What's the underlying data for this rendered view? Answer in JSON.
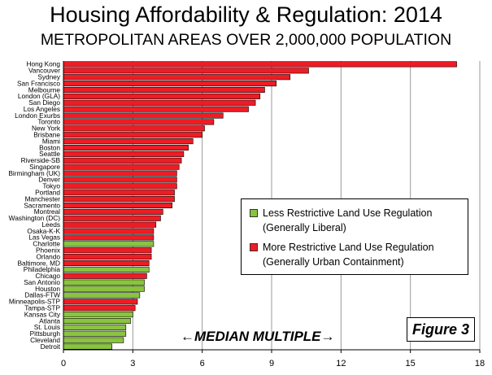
{
  "title": "Housing Affordability & Regulation: 2014",
  "subtitle": "METROPOLITAN AREAS OVER 2,000,000 POPULATION",
  "figure_label": "Figure 3",
  "axis_annotation": "←MEDIAN MULTIPLE→",
  "legend": [
    {
      "color": "#8ac43f",
      "line1": "Less Restrictive Land Use Regulation",
      "line2": "(Generally Liberal)"
    },
    {
      "color": "#ee1c24",
      "line1": "More Restrictive Land Use Regulation",
      "line2": "(Generally Urban Containment)"
    }
  ],
  "colors": {
    "less": "#8ac43f",
    "more": "#ee1c24",
    "grid": "#999999"
  },
  "chart_data": {
    "type": "bar",
    "orientation": "horizontal",
    "title": "Housing Affordability & Regulation: 2014",
    "subtitle": "METROPOLITAN AREAS OVER 2,000,000 POPULATION",
    "xlabel": "←MEDIAN MULTIPLE→",
    "xlim": [
      0,
      18
    ],
    "xticks": [
      0,
      3,
      6,
      9,
      12,
      15,
      18
    ],
    "grid": "vertical",
    "legend_position": "right-center",
    "categories": [
      "Hong Kong",
      "Vancouver",
      "Sydney",
      "San Francisco",
      "Melbourne",
      "London (GLA)",
      "San Diego",
      "Los Angeles",
      "London Exurbs",
      "Toronto",
      "New York",
      "Brisbane",
      "Miami",
      "Boston",
      "Seattle",
      "Riverside-SB",
      "Singapore",
      "Birmingham (UK)",
      "Denver",
      "Tokyo",
      "Portland",
      "Manchester",
      "Sacramento",
      "Montreal",
      "Washington (DC)",
      "Leeds",
      "Osaka-K-K",
      "Las Vegas",
      "Charlotte",
      "Phoenix",
      "Orlando",
      "Baltimore, MD",
      "Philadelphia",
      "Chicago",
      "San Antonio",
      "Houston",
      "Dallas-FTW",
      "Minneapolis-STP",
      "Tampa-STP",
      "Kansas City",
      "Atlanta",
      "St. Louis",
      "Pittsburgh",
      "Cleveland",
      "Detroit"
    ],
    "values": [
      17.0,
      10.6,
      9.8,
      9.2,
      8.7,
      8.5,
      8.3,
      8.0,
      6.9,
      6.5,
      6.1,
      6.0,
      5.6,
      5.4,
      5.2,
      5.1,
      5.0,
      4.9,
      4.9,
      4.9,
      4.8,
      4.8,
      4.7,
      4.3,
      4.2,
      4.0,
      3.9,
      3.9,
      3.9,
      3.8,
      3.8,
      3.7,
      3.7,
      3.6,
      3.5,
      3.5,
      3.3,
      3.2,
      3.1,
      3.0,
      2.9,
      2.7,
      2.7,
      2.6,
      2.1
    ],
    "regulation": [
      "more",
      "more",
      "more",
      "more",
      "more",
      "more",
      "more",
      "more",
      "more",
      "more",
      "more",
      "more",
      "more",
      "more",
      "more",
      "more",
      "more",
      "more",
      "more",
      "more",
      "more",
      "more",
      "more",
      "more",
      "more",
      "more",
      "more",
      "more",
      "less",
      "more",
      "more",
      "more",
      "less",
      "more",
      "less",
      "less",
      "less",
      "more",
      "more",
      "less",
      "less",
      "less",
      "less",
      "less",
      "less"
    ]
  }
}
